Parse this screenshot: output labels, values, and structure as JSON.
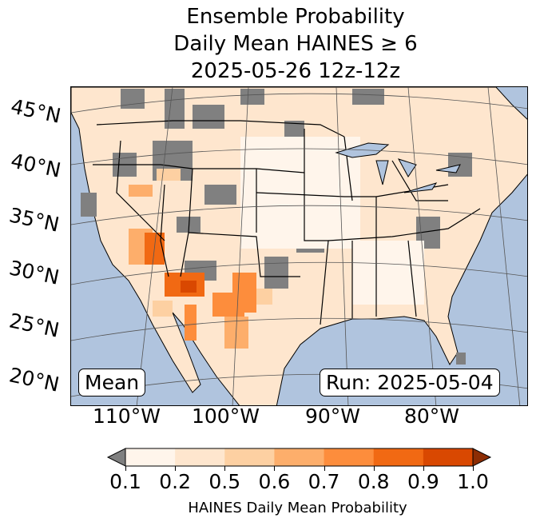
{
  "title_lines": [
    "Ensemble Probability",
    "Daily Mean HAINES ≥ 6",
    "2025-05-26 12z-12z"
  ],
  "lat_labels": [
    "45°N",
    "40°N",
    "35°N",
    "30°N",
    "25°N",
    "20°N"
  ],
  "lon_labels": [
    "110°W",
    "100°W",
    "90°W",
    "80°W"
  ],
  "mean_label": "Mean",
  "run_label": "Run: 2025-05-04",
  "colorbar": {
    "ticks": [
      "0.1",
      "0.2",
      "0.5",
      "0.6",
      "0.7",
      "0.8",
      "0.9",
      "1.0"
    ],
    "colors": [
      "#fff5eb",
      "#fee6ce",
      "#fdd0a2",
      "#fdae6b",
      "#fd8d3c",
      "#f16913",
      "#d94801"
    ],
    "under_color": "#808080",
    "over_color": "#8c2d04",
    "label": "HAINES Daily Mean Probability"
  },
  "colors": {
    "ocean": "#b0c4de",
    "land": "#fee6ce",
    "missing": "#808080"
  }
}
